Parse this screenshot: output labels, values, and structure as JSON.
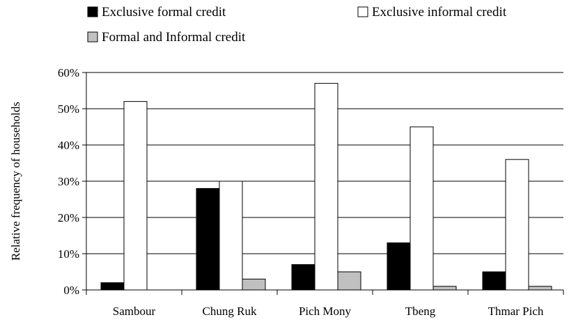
{
  "chart_data": {
    "type": "bar",
    "title": "",
    "xlabel": "",
    "ylabel": "Relative frequency of households",
    "categories": [
      "Sambour",
      "Chung Ruk",
      "Pich Mony",
      "Tbeng",
      "Thmar Pich"
    ],
    "series": [
      {
        "name": "Exclusive formal credit",
        "color": "#000000",
        "values": [
          0.02,
          0.28,
          0.07,
          0.13,
          0.05
        ]
      },
      {
        "name": "Exclusive informal credit",
        "color": "#ffffff",
        "values": [
          0.52,
          0.3,
          0.57,
          0.45,
          0.36
        ]
      },
      {
        "name": "Formal and Informal credit",
        "color": "#c0c0c0",
        "values": [
          0.0,
          0.03,
          0.05,
          0.01,
          0.01
        ]
      }
    ],
    "ylim": [
      0,
      0.6
    ],
    "yticks": [
      0,
      0.1,
      0.2,
      0.3,
      0.4,
      0.5,
      0.6
    ],
    "ytick_labels": [
      "0%",
      "10%",
      "20%",
      "30%",
      "40%",
      "50%",
      "60%"
    ],
    "grid": true,
    "legend_position": "top"
  }
}
